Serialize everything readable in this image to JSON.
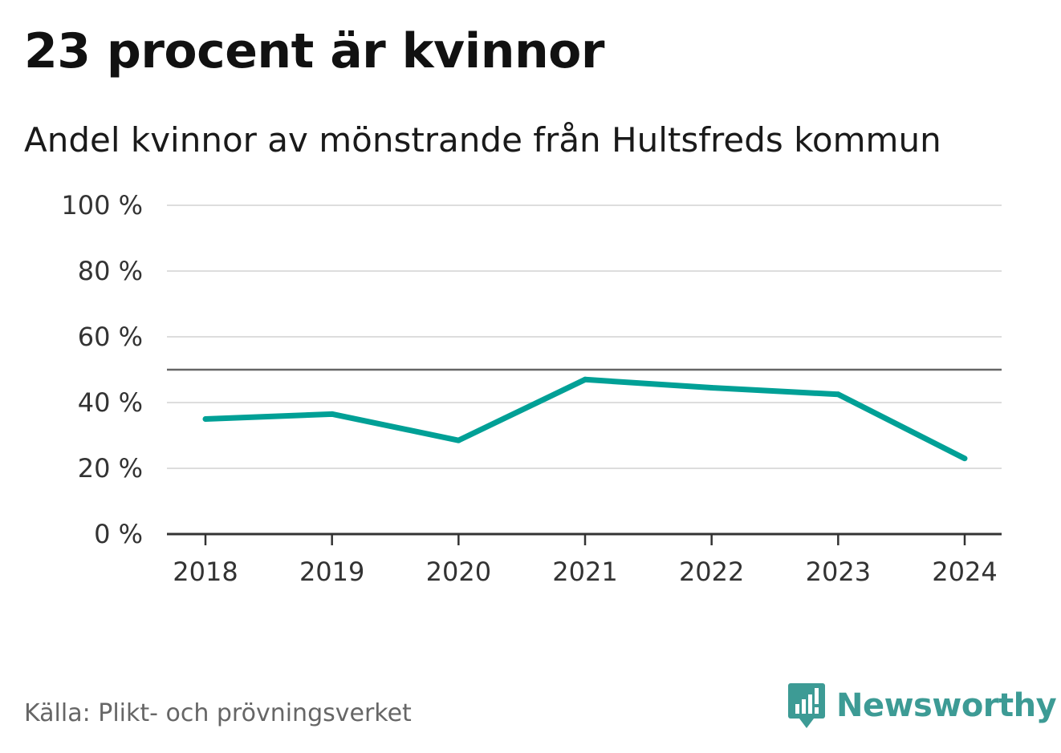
{
  "title": "23 procent är kvinnor",
  "subtitle": "Andel kvinnor av mönstrande från Hultsfreds kommun",
  "source": "Källa: Plikt- och prövningsverket",
  "brand": {
    "name": "Newsworthy",
    "icon": "newsworthy-logo-icon",
    "color": "#3d9b95"
  },
  "colors": {
    "line": "#00a096",
    "grid": "#dddddd",
    "reference": "#666666",
    "axis": "#333333"
  },
  "chart_data": {
    "type": "line",
    "x": [
      "2018",
      "2019",
      "2020",
      "2021",
      "2022",
      "2023",
      "2024"
    ],
    "series": [
      {
        "values": [
          35,
          36.5,
          28.5,
          47,
          44.5,
          42.5,
          23
        ]
      }
    ],
    "ylim": [
      0,
      100
    ],
    "yticks": [
      0,
      20,
      40,
      60,
      80,
      100
    ],
    "ytick_labels": [
      "0 %",
      "20 %",
      "40 %",
      "60 %",
      "80 %",
      "100 %"
    ],
    "reference_line": 50,
    "grid": true,
    "legend": "none"
  }
}
